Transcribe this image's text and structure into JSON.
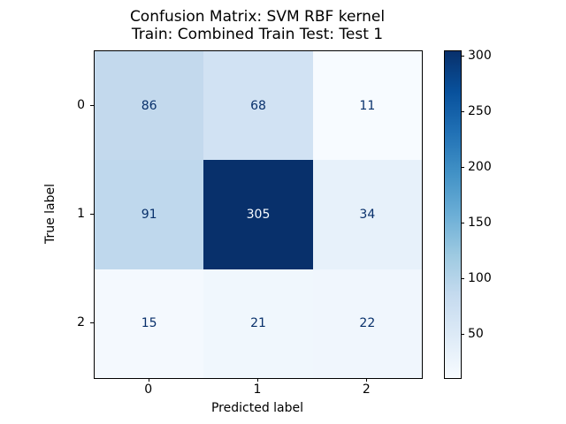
{
  "figure": {
    "title_line1": "Confusion Matrix: SVM RBF kernel",
    "title_line2": "Train: Combined Train Test: Test 1"
  },
  "chart_data": {
    "type": "heatmap",
    "title": "Confusion Matrix: SVM RBF kernel",
    "subtitle": "Train: Combined Train Test: Test 1",
    "xlabel": "Predicted label",
    "ylabel": "True label",
    "x_ticklabels": [
      "0",
      "1",
      "2"
    ],
    "y_ticklabels": [
      "0",
      "1",
      "2"
    ],
    "matrix": [
      [
        86,
        68,
        11
      ],
      [
        91,
        305,
        34
      ],
      [
        15,
        21,
        22
      ]
    ],
    "vmin": 11,
    "vmax": 305,
    "colormap": "Blues",
    "cell_colors": [
      [
        "#c3d9ed",
        "#d1e2f3",
        "#f7fbff"
      ],
      [
        "#bfd8ed",
        "#08306b",
        "#e7f1fa"
      ],
      [
        "#f4f9fe",
        "#f0f7fd",
        "#f0f6fd"
      ]
    ],
    "cell_text_dark": "#08306b",
    "cell_text_light": "#f7fbff",
    "colorbar": {
      "ticks": [
        50,
        100,
        150,
        200,
        250,
        300
      ],
      "gradient_stops": [
        "#f7fbff",
        "#deebf7",
        "#c6dbef",
        "#9ecae1",
        "#6baed6",
        "#4292c6",
        "#2171b5",
        "#08519c",
        "#08306b"
      ]
    },
    "legend": "none",
    "grid": false
  }
}
